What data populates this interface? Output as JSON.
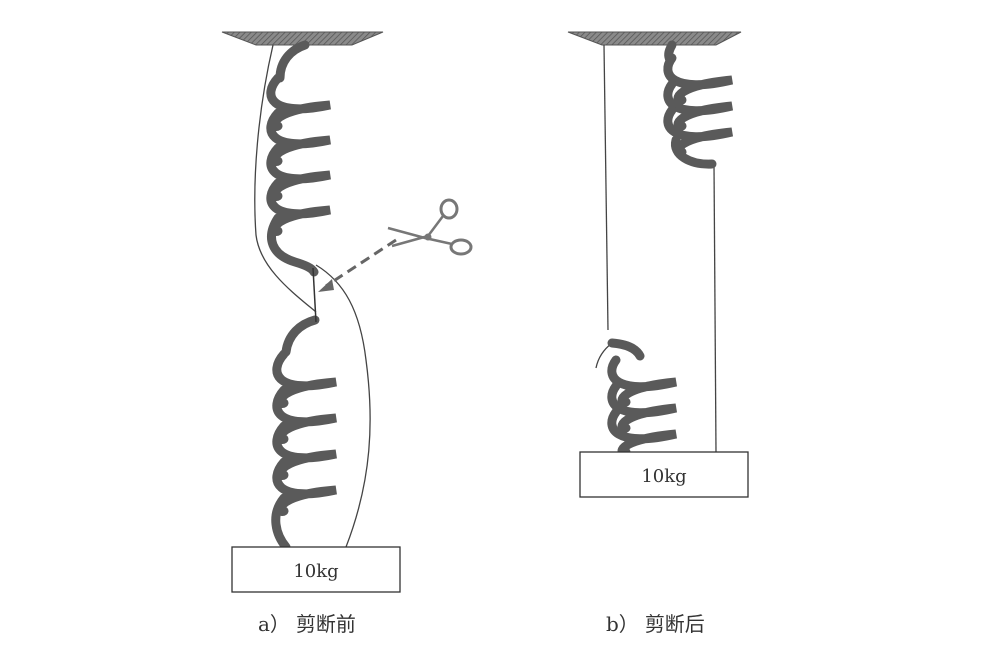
{
  "panel_a": {
    "mass_label": "10kg",
    "caption_letter": "a）",
    "caption_text": "剪断前"
  },
  "panel_b": {
    "mass_label": "10kg",
    "caption_letter": "b）",
    "caption_text": "剪断后"
  },
  "colors": {
    "spring": "#5a5a5a",
    "ceiling": "#6e6e6e",
    "line": "#444444",
    "scissors": "#888888"
  },
  "icons": [
    "scissors-icon"
  ]
}
